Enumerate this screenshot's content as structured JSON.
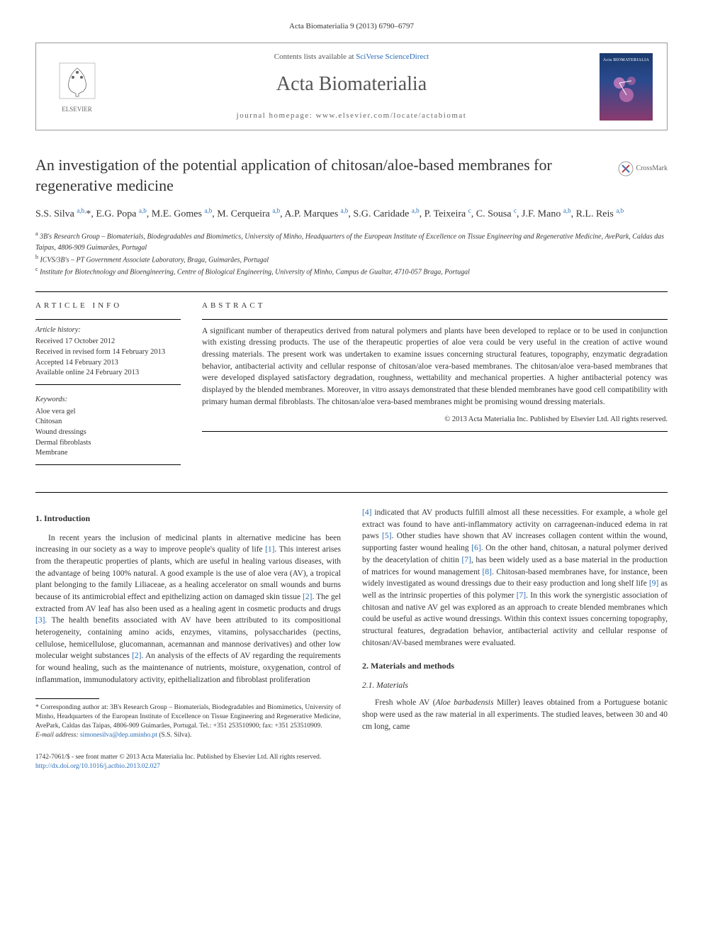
{
  "journal_ref": "Acta Biomaterialia 9 (2013) 6790–6797",
  "header": {
    "publisher": "ELSEVIER",
    "contents_prefix": "Contents lists available at ",
    "contents_link": "SciVerse ScienceDirect",
    "journal_name": "Acta Biomaterialia",
    "homepage_label": "journal homepage: ",
    "homepage_url": "www.elsevier.com/locate/actabiomat",
    "cover_title": "Acta BIOMATERIALIA"
  },
  "crossmark": "CrossMark",
  "title": "An investigation of the potential application of chitosan/aloe-based membranes for regenerative medicine",
  "authors_html": "S.S. Silva <span class='sup'>a,b,</span>*, E.G. Popa <span class='sup'>a,b</span>, M.E. Gomes <span class='sup'>a,b</span>, M. Cerqueira <span class='sup'>a,b</span>, A.P. Marques <span class='sup'>a,b</span>, S.G. Caridade <span class='sup'>a,b</span>, P. Teixeira <span class='sup'>c</span>, C. Sousa <span class='sup'>c</span>, J.F. Mano <span class='sup'>a,b</span>, R.L. Reis <span class='sup'>a,b</span>",
  "affiliations": [
    {
      "sup": "a",
      "text": "3B's Research Group – Biomaterials, Biodegradables and Biomimetics, University of Minho, Headquarters of the European Institute of Excellence on Tissue Engineering and Regenerative Medicine, AvePark, Caldas das Taipas, 4806-909 Guimarães, Portugal"
    },
    {
      "sup": "b",
      "text": "ICVS/3B's – PT Government Associate Laboratory, Braga, Guimarães, Portugal"
    },
    {
      "sup": "c",
      "text": "Institute for Biotechnology and Bioengineering, Centre of Biological Engineering, University of Minho, Campus de Gualtar, 4710-057 Braga, Portugal"
    }
  ],
  "info": {
    "heading": "ARTICLE INFO",
    "history_label": "Article history:",
    "history": [
      "Received 17 October 2012",
      "Received in revised form 14 February 2013",
      "Accepted 14 February 2013",
      "Available online 24 February 2013"
    ],
    "keywords_label": "Keywords:",
    "keywords": [
      "Aloe vera gel",
      "Chitosan",
      "Wound dressings",
      "Dermal fibroblasts",
      "Membrane"
    ]
  },
  "abstract": {
    "heading": "ABSTRACT",
    "text": "A significant number of therapeutics derived from natural polymers and plants have been developed to replace or to be used in conjunction with existing dressing products. The use of the therapeutic properties of aloe vera could be very useful in the creation of active wound dressing materials. The present work was undertaken to examine issues concerning structural features, topography, enzymatic degradation behavior, antibacterial activity and cellular response of chitosan/aloe vera-based membranes. The chitosan/aloe vera-based membranes that were developed displayed satisfactory degradation, roughness, wettability and mechanical properties. A higher antibacterial potency was displayed by the blended membranes. Moreover, in vitro assays demonstrated that these blended membranes have good cell compatibility with primary human dermal fibroblasts. The chitosan/aloe vera-based membranes might be promising wound dressing materials.",
    "copyright": "© 2013 Acta Materialia Inc. Published by Elsevier Ltd. All rights reserved."
  },
  "sections": {
    "intro_heading": "1. Introduction",
    "intro_col1": "In recent years the inclusion of medicinal plants in alternative medicine has been increasing in our society as a way to improve people's quality of life [1]. This interest arises from the therapeutic properties of plants, which are useful in healing various diseases, with the advantage of being 100% natural. A good example is the use of aloe vera (AV), a tropical plant belonging to the family Liliaceae, as a healing accelerator on small wounds and burns because of its antimicrobial effect and epithelizing action on damaged skin tissue [2]. The gel extracted from AV leaf has also been used as a healing agent in cosmetic products and drugs [3]. The health benefits associated with AV have been attributed to its compositional heterogeneity, containing amino acids, enzymes, vitamins, polysaccharides (pectins, cellulose, hemicellulose, glucomannan, acemannan and mannose derivatives) and other low molecular weight substances [2]. An analysis of the effects of AV regarding the requirements for wound healing, such as the maintenance of nutrients, moisture, oxygenation, control of inflammation, immunodulatory activity, epithelialization and fibroblast proliferation",
    "intro_col2": "[4] indicated that AV products fulfill almost all these necessities. For example, a whole gel extract was found to have anti-inflammatory activity on carrageenan-induced edema in rat paws [5]. Other studies have shown that AV increases collagen content within the wound, supporting faster wound healing [6]. On the other hand, chitosan, a natural polymer derived by the deacetylation of chitin [7], has been widely used as a base material in the production of matrices for wound management [8]. Chitosan-based membranes have, for instance, been widely investigated as wound dressings due to their easy production and long shelf life [9] as well as the intrinsic properties of this polymer [7]. In this work the synergistic association of chitosan and native AV gel was explored as an approach to create blended membranes which could be useful as active wound dressings. Within this context issues concerning topography, structural features, degradation behavior, antibacterial activity and cellular response of chitosan/AV-based membranes were evaluated.",
    "methods_heading": "2. Materials and methods",
    "materials_heading": "2.1. Materials",
    "materials_text": "Fresh whole AV (Aloe barbadensis Miller) leaves obtained from a Portuguese botanic shop were used as the raw material in all experiments. The studied leaves, between 30 and 40 cm long, came"
  },
  "footnote": {
    "corr": "* Corresponding author at: 3B's Research Group – Biomaterials, Biodegradables and Biomimetics, University of Minho, Headquarters of the European Institute of Excellence on Tissue Engineering and Regenerative Medicine, AvePark, Caldas das Taipas, 4806-909 Guimarães, Portugal. Tel.: +351 253510900; fax: +351 253510909.",
    "email_label": "E-mail address: ",
    "email": "simonesilva@dep.uminho.pt",
    "email_suffix": " (S.S. Silva)."
  },
  "footer": {
    "issn": "1742-7061/$ - see front matter © 2013 Acta Materialia Inc. Published by Elsevier Ltd. All rights reserved.",
    "doi_label": "http://dx.doi.org/",
    "doi": "10.1016/j.actbio.2013.02.027"
  },
  "colors": {
    "link": "#2a6cb5",
    "text": "#333333",
    "border": "#999999"
  }
}
